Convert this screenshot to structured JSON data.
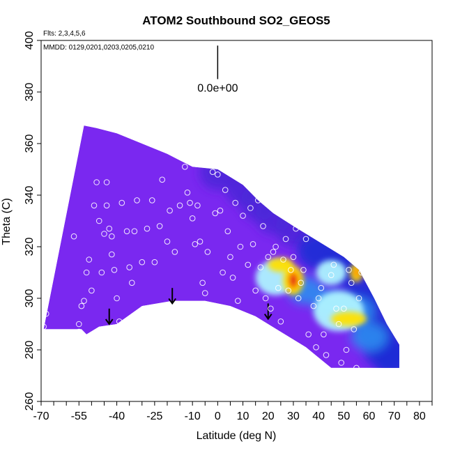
{
  "chart_data": {
    "type": "heatmap",
    "title": "ATOM2 Southbound SO2_GEOS5",
    "xlabel": "Latitude (deg N)",
    "ylabel": "Theta (C)",
    "xlim": [
      -70,
      85
    ],
    "ylim": [
      260,
      400
    ],
    "x_ticks": [
      "-70",
      "-55",
      "-40",
      "-25",
      "-10",
      "0",
      "10",
      "20",
      "30",
      "40",
      "50",
      "60",
      "70",
      "80"
    ],
    "x_tick_values": [
      -70,
      -55,
      -40,
      -25,
      -10,
      0,
      10,
      20,
      30,
      40,
      50,
      60,
      70,
      80
    ],
    "x_minor_step": 5,
    "y_ticks": [
      "260",
      "280",
      "300",
      "320",
      "340",
      "360",
      "380",
      "400"
    ],
    "y_tick_values": [
      260,
      280,
      300,
      320,
      340,
      360,
      380,
      400
    ],
    "flights_note": "Flts: 2,3,4,5,6",
    "dates_note": "MMDD: 0129,0201,0203,0205,0210",
    "scale_label": "0.0e+00",
    "colors": {
      "background_field": "#7a28f0",
      "upper_band": "#4a26d8",
      "high_blue": "#1f2bd6",
      "mid_blue": "#2e8cf0",
      "cyan": "#aef2ff",
      "yellow": "#ffe000",
      "orange": "#ff7a00",
      "red": "#e01010"
    },
    "domain_top": [
      [
        -53,
        367
      ],
      [
        -48,
        366
      ],
      [
        -40,
        364
      ],
      [
        -30,
        360
      ],
      [
        -20,
        356
      ],
      [
        -10,
        351
      ],
      [
        0,
        350
      ],
      [
        10,
        344
      ],
      [
        16,
        338
      ],
      [
        22,
        333
      ],
      [
        30,
        328
      ],
      [
        40,
        322
      ],
      [
        50,
        316
      ],
      [
        56,
        311
      ],
      [
        62,
        300
      ],
      [
        67,
        290
      ],
      [
        72,
        282
      ]
    ],
    "domain_bottom": [
      [
        -69,
        288
      ],
      [
        -54,
        288
      ],
      [
        -52,
        286
      ],
      [
        -47,
        289
      ],
      [
        -40,
        290
      ],
      [
        -30,
        297
      ],
      [
        -18,
        299
      ],
      [
        -5,
        299
      ],
      [
        5,
        297
      ],
      [
        15,
        293
      ],
      [
        25,
        287
      ],
      [
        35,
        281
      ],
      [
        45,
        273
      ],
      [
        72,
        273
      ]
    ],
    "hotspots": [
      {
        "x": 30,
        "y": 307,
        "peak": "red",
        "rx": 3,
        "ry": 5
      },
      {
        "x": 25,
        "y": 313,
        "peak": "yellow",
        "rx": 4,
        "ry": 2
      },
      {
        "x": 52,
        "y": 292,
        "peak": "yellow",
        "rx": 6,
        "ry": 2
      },
      {
        "x": 55,
        "y": 310,
        "peak": "orange",
        "rx": 1.5,
        "ry": 3
      }
    ],
    "cyan_regions": [
      {
        "x": 23,
        "y": 308,
        "rx": 8,
        "ry": 7
      },
      {
        "x": 48,
        "y": 295,
        "rx": 10,
        "ry": 8
      },
      {
        "x": 45,
        "y": 310,
        "rx": 6,
        "ry": 5
      }
    ],
    "arrows_x": [
      -43,
      -18,
      20
    ],
    "arrows_y_top": [
      296,
      304,
      298
    ],
    "arrows_y_bottom": [
      290,
      298,
      292
    ],
    "scale_bar_x": 0,
    "scale_bar_y": [
      398,
      385
    ],
    "points": [
      [
        -69,
        289
      ],
      [
        -68,
        294
      ],
      [
        -57,
        324
      ],
      [
        -55,
        287
      ],
      [
        -55,
        290
      ],
      [
        -54,
        297
      ],
      [
        -53,
        299
      ],
      [
        -52,
        310
      ],
      [
        -51,
        315
      ],
      [
        -50,
        303
      ],
      [
        -49,
        336
      ],
      [
        -48,
        345
      ],
      [
        -47,
        330
      ],
      [
        -46,
        310
      ],
      [
        -45,
        325
      ],
      [
        -44,
        345
      ],
      [
        -44,
        336
      ],
      [
        -43,
        327
      ],
      [
        -42,
        324
      ],
      [
        -42,
        317
      ],
      [
        -41,
        311
      ],
      [
        -40,
        300
      ],
      [
        -39,
        291
      ],
      [
        -38,
        337
      ],
      [
        -36,
        326
      ],
      [
        -35,
        312
      ],
      [
        -34,
        306
      ],
      [
        -33,
        326
      ],
      [
        -32,
        338
      ],
      [
        -30,
        314
      ],
      [
        -29,
        296
      ],
      [
        -28,
        327
      ],
      [
        -26,
        338
      ],
      [
        -25,
        314
      ],
      [
        -23,
        328
      ],
      [
        -22,
        346
      ],
      [
        -20,
        322
      ],
      [
        -19,
        334
      ],
      [
        -17,
        318
      ],
      [
        -15,
        336
      ],
      [
        -13,
        351
      ],
      [
        -12,
        341
      ],
      [
        -11,
        337
      ],
      [
        -10,
        331
      ],
      [
        -9,
        321
      ],
      [
        -8,
        336
      ],
      [
        -7,
        322
      ],
      [
        -6,
        306
      ],
      [
        -5,
        302
      ],
      [
        -4,
        318
      ],
      [
        -2,
        349
      ],
      [
        -1,
        333
      ],
      [
        0,
        348
      ],
      [
        1,
        334
      ],
      [
        2,
        310
      ],
      [
        3,
        342
      ],
      [
        4,
        326
      ],
      [
        5,
        316
      ],
      [
        6,
        308
      ],
      [
        7,
        337
      ],
      [
        8,
        299
      ],
      [
        9,
        320
      ],
      [
        10,
        332
      ],
      [
        11,
        349
      ],
      [
        12,
        313
      ],
      [
        13,
        335
      ],
      [
        14,
        321
      ],
      [
        15,
        303
      ],
      [
        16,
        338
      ],
      [
        17,
        312
      ],
      [
        18,
        328
      ],
      [
        19,
        300
      ],
      [
        20,
        316
      ],
      [
        21,
        296
      ],
      [
        22,
        318
      ],
      [
        23,
        320
      ],
      [
        24,
        304
      ],
      [
        25,
        291
      ],
      [
        26,
        315
      ],
      [
        27,
        323
      ],
      [
        28,
        303
      ],
      [
        29,
        311
      ],
      [
        30,
        316
      ],
      [
        31,
        327
      ],
      [
        32,
        300
      ],
      [
        33,
        306
      ],
      [
        34,
        311
      ],
      [
        35,
        323
      ],
      [
        36,
        286
      ],
      [
        38,
        297
      ],
      [
        39,
        281
      ],
      [
        40,
        300
      ],
      [
        41,
        304
      ],
      [
        42,
        286
      ],
      [
        43,
        278
      ],
      [
        45,
        309
      ],
      [
        46,
        313
      ],
      [
        47,
        296
      ],
      [
        48,
        290
      ],
      [
        49,
        275
      ],
      [
        50,
        296
      ],
      [
        51,
        280
      ],
      [
        52,
        311
      ],
      [
        53,
        306
      ],
      [
        54,
        288
      ],
      [
        55,
        273
      ],
      [
        56,
        300
      ],
      [
        57,
        310
      ]
    ]
  }
}
